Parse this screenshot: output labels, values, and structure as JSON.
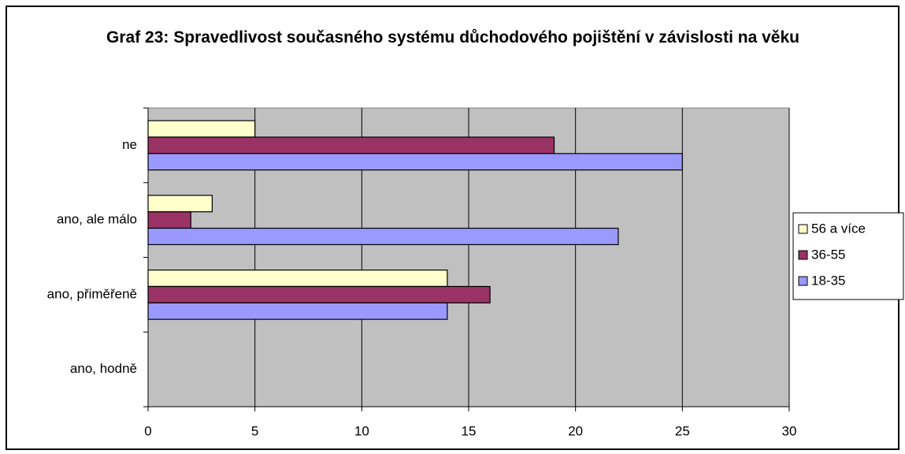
{
  "chart_data": {
    "type": "barh",
    "title": "Graf 23: Spravedlivost současného systému důchodového pojištění v závislosti na věku",
    "categories": [
      "ne",
      "ano, ale málo",
      "ano, přiměřeně",
      "ano, hodně"
    ],
    "series": [
      {
        "name": "56 a více",
        "color": "#ffffcc",
        "values": [
          5,
          3,
          14,
          0
        ]
      },
      {
        "name": "36-55",
        "color": "#993366",
        "values": [
          19,
          2,
          16,
          0
        ]
      },
      {
        "name": "18-35",
        "color": "#9999ff",
        "values": [
          25,
          22,
          14,
          0
        ]
      }
    ],
    "xlim": [
      0,
      30
    ],
    "xticks": [
      0,
      5,
      10,
      15,
      20,
      25,
      30
    ],
    "grid": true,
    "legend": "right"
  }
}
